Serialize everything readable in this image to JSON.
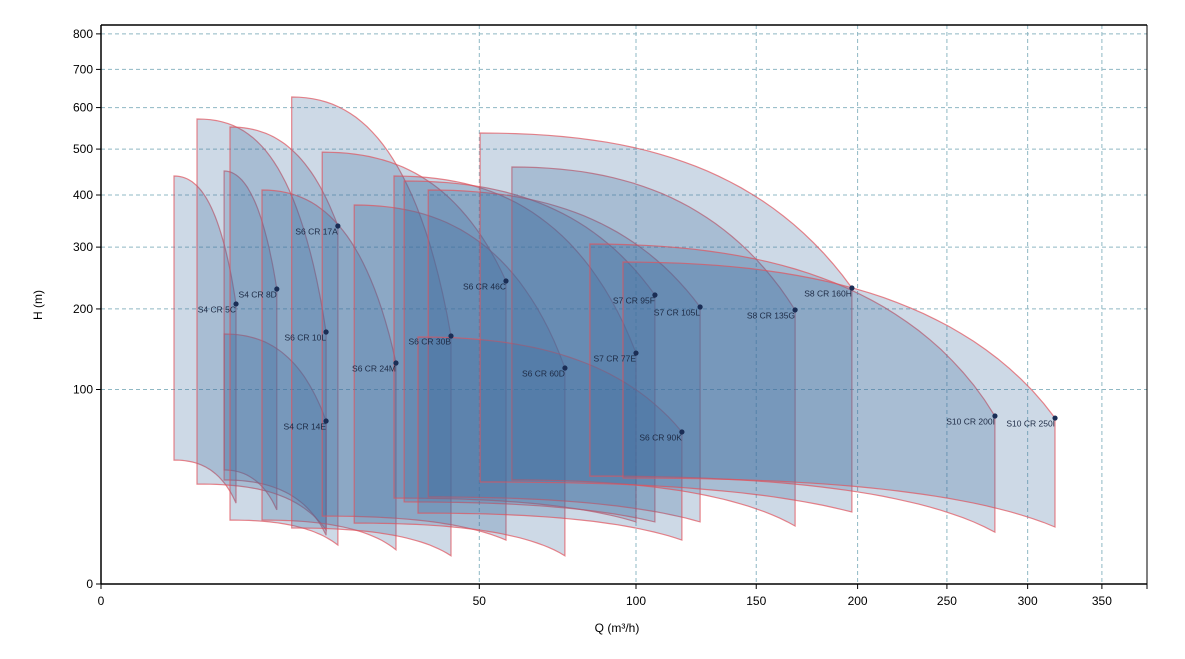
{
  "chart_data": {
    "type": "area",
    "title": "",
    "xlabel": "Q (m³/h)",
    "ylabel": "H (m)",
    "x_scale": "sqrt",
    "y_scale": "sqrt",
    "xlim": [
      0,
      382
    ],
    "ylim": [
      0,
      826
    ],
    "x_ticks": [
      0,
      50,
      100,
      150,
      200,
      250,
      300,
      350
    ],
    "y_ticks": [
      0,
      100,
      200,
      300,
      400,
      500,
      600,
      700,
      800
    ],
    "grid": true,
    "colors": {
      "fill": "#3f6b9e",
      "stroke": "#e0525c",
      "marker": "#1a2d55",
      "grid": "#8fb8c4"
    },
    "series": [
      {
        "name": "S4 CR 5C",
        "q_min": 1.86,
        "q_max": 6.37,
        "h_top_left": 440,
        "h_top_right": 207.3,
        "h_bottom_left": 40.6,
        "h_bottom_right": 17.3
      },
      {
        "name": "S4 CR 8D",
        "q_min": 5.29,
        "q_max": 10.8,
        "h_top_left": 450.8,
        "h_top_right": 230,
        "h_bottom_left": 34.4,
        "h_bottom_right": 14.5
      },
      {
        "name": "S4 CR 14E",
        "q_min": 5.29,
        "q_max": 17.7,
        "h_top_left": 165.2,
        "h_top_right": 70.2,
        "h_bottom_left": 28.6,
        "h_bottom_right": 6.3
      },
      {
        "name": "S6 CR 10L",
        "q_min": 3.22,
        "q_max": 17.7,
        "h_top_left": 571.6,
        "h_top_right": 167.9,
        "h_bottom_left": 26.4,
        "h_bottom_right": 7.7
      },
      {
        "name": "S6 CR 17A",
        "q_min": 5.81,
        "q_max": 19.6,
        "h_top_left": 552,
        "h_top_right": 338.8,
        "h_bottom_left": 10.8,
        "h_bottom_right": 4.0
      },
      {
        "name": "S6 CR 24M",
        "q_min": 9.06,
        "q_max": 30.4,
        "h_top_left": 410.4,
        "h_top_right": 129.1,
        "h_bottom_left": 10.8,
        "h_bottom_right": 3.1
      },
      {
        "name": "S6 CR 30B",
        "q_min": 12.7,
        "q_max": 42.8,
        "h_top_left": 627,
        "h_top_right": 162.6,
        "h_bottom_left": 8.3,
        "h_bottom_right": 2.1
      },
      {
        "name": "S6 CR 46C",
        "q_min": 17.1,
        "q_max": 57.3,
        "h_top_left": 493,
        "h_top_right": 242.7,
        "h_bottom_left": 12.2,
        "h_bottom_right": 5.1
      },
      {
        "name": "S6 CR 60D",
        "q_min": 22.4,
        "q_max": 75.2,
        "h_top_left": 379.7,
        "h_top_right": 123.3,
        "h_bottom_left": 9.8,
        "h_bottom_right": 2.1
      },
      {
        "name": "S7 CR 77E",
        "q_min": 30.0,
        "q_max": 100,
        "h_top_left": 440,
        "h_top_right": 141,
        "h_bottom_left": 19.5,
        "h_bottom_right": 10.2
      },
      {
        "name": "S7 CR 95F",
        "q_min": 32.1,
        "q_max": 107.2,
        "h_top_left": 429.3,
        "h_top_right": 220.8,
        "h_bottom_left": 17.8,
        "h_bottom_right": 10.2
      },
      {
        "name": "S7 CR 105L",
        "q_min": 37.4,
        "q_max": 125.4,
        "h_top_left": 410.4,
        "h_top_right": 202.8,
        "h_bottom_left": 20.0,
        "h_bottom_right": 10.2
      },
      {
        "name": "S6 CR 90K",
        "q_min": 35.1,
        "q_max": 117.9,
        "h_top_left": 161.3,
        "h_top_right": 61.1,
        "h_bottom_left": 13.3,
        "h_bottom_right": 5.1
      },
      {
        "name": "S8 CR 135G",
        "q_min": 59.0,
        "q_max": 168.3,
        "h_top_left": 459.7,
        "h_top_right": 198.5,
        "h_bottom_left": 28.6,
        "h_bottom_right": 8.9
      },
      {
        "name": "S8 CR 160H",
        "q_min": 50.2,
        "q_max": 197.0,
        "h_top_left": 537.6,
        "h_top_right": 231.6,
        "h_bottom_left": 27.5,
        "h_bottom_right": 13.7
      },
      {
        "name": "S10 CR 200I",
        "q_min": 83.5,
        "q_max": 279.2,
        "h_top_left": 305.6,
        "h_top_right": 74.6,
        "h_bottom_left": 30.8,
        "h_bottom_right": 7.1
      },
      {
        "name": "S10 CR 250I",
        "q_min": 95.2,
        "q_max": 318,
        "h_top_left": 274,
        "h_top_right": 72.8,
        "h_bottom_left": 29.7,
        "h_bottom_right": 8.6
      }
    ]
  }
}
